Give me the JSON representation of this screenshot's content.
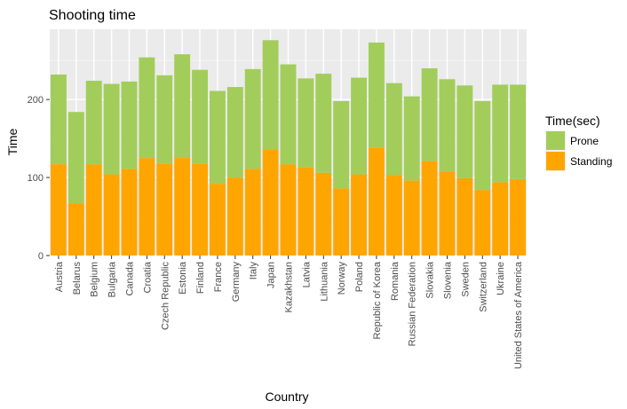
{
  "chart_data": {
    "type": "bar",
    "stacked": true,
    "title": "Shooting time",
    "xlabel": "Country",
    "ylabel": "Time",
    "ylim": [
      0,
      290
    ],
    "yticks": [
      0,
      100,
      200
    ],
    "grid": true,
    "legend": {
      "title": "Time(sec)",
      "placement": "right"
    },
    "categories": [
      "Austria",
      "Belarus",
      "Belgium",
      "Bulgaria",
      "Canada",
      "Croatia",
      "Czech Republic",
      "Estonia",
      "Finland",
      "France",
      "Germany",
      "Italy",
      "Japan",
      "Kazakhstan",
      "Latvia",
      "Lithuania",
      "Norway",
      "Poland",
      "Republic of Korea",
      "Romania",
      "Russian Federation",
      "Slovakia",
      "Slovenia",
      "Sweden",
      "Switzerland",
      "Ukraine",
      "United States of America"
    ],
    "series": [
      {
        "name": "Standing",
        "color": "#FFA500",
        "values": [
          117,
          67,
          117,
          104,
          111,
          125,
          118,
          125,
          118,
          92,
          100,
          111,
          136,
          117,
          113,
          106,
          86,
          104,
          138,
          103,
          96,
          121,
          107,
          99,
          84,
          94,
          98
        ]
      },
      {
        "name": "Prone",
        "color": "#A2CD5A",
        "values": [
          115,
          117,
          107,
          116,
          112,
          129,
          113,
          133,
          120,
          119,
          116,
          128,
          140,
          128,
          114,
          127,
          112,
          124,
          135,
          118,
          108,
          119,
          119,
          119,
          114,
          125,
          121
        ]
      }
    ]
  }
}
